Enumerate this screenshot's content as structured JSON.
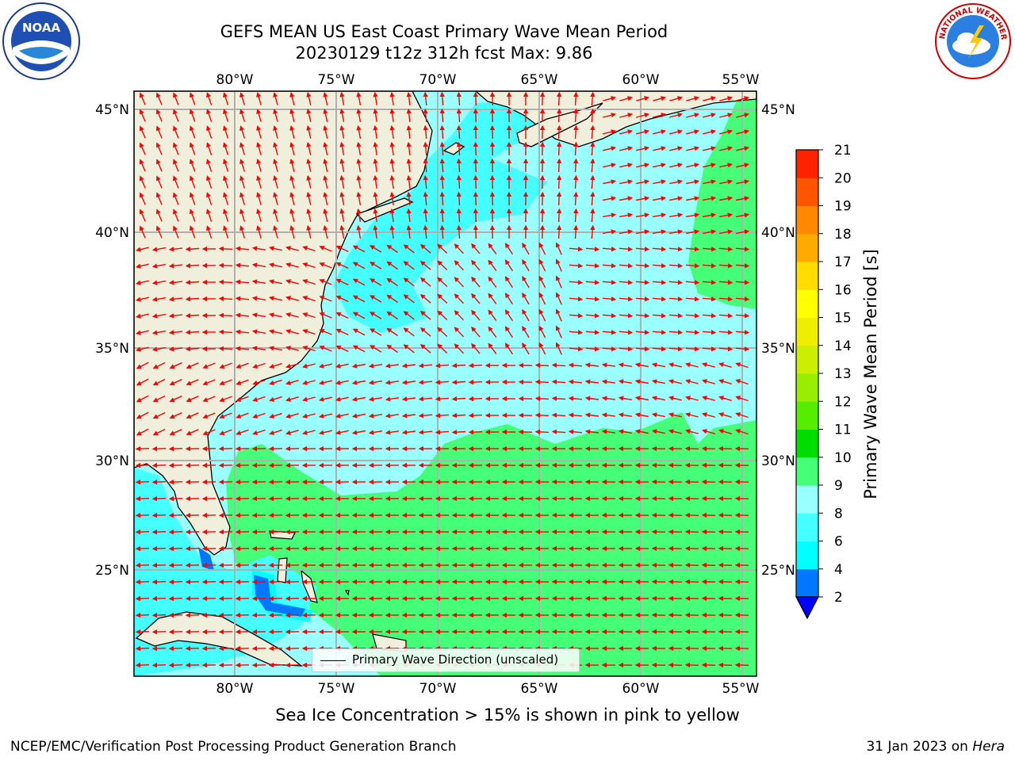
{
  "title": {
    "line1": "GEFS MEAN US East Coast Primary Wave Mean Period",
    "line2": "20230129 t12z 312h fcst   Max: 9.86"
  },
  "logos": {
    "left": {
      "icon": "noaa-logo",
      "text": "NOAA"
    },
    "right": {
      "icon": "nws-logo",
      "text": "NATIONAL WEATHER SERVICE"
    }
  },
  "map": {
    "lon_labels": [
      "80°W",
      "75°W",
      "70°W",
      "65°W",
      "60°W",
      "55°W"
    ],
    "lat_labels": [
      "45°N",
      "40°N",
      "35°N",
      "30°N",
      "25°N"
    ],
    "lon_range": [
      -85,
      -54.3
    ],
    "lat_range": [
      20,
      46
    ],
    "legend": "Primary Wave Direction (unscaled)",
    "arrow_color": "#ff0000",
    "land_color": "#efefdc"
  },
  "colorbar": {
    "title": "Primary Wave Mean Period [s]",
    "ticks": [
      "2",
      "4",
      "6",
      "8",
      "9",
      "10",
      "11",
      "12",
      "13",
      "14",
      "15",
      "16",
      "17",
      "18",
      "19",
      "20",
      "21"
    ],
    "colors": [
      "#0077ff",
      "#00ffff",
      "#44ffff",
      "#99ffff",
      "#44ff77",
      "#00dd00",
      "#55ee00",
      "#99ee00",
      "#ccee00",
      "#eeee00",
      "#ffff00",
      "#ffdd00",
      "#ffaa00",
      "#ff8800",
      "#ff5500",
      "#ff2200"
    ],
    "under_color": "#0000ff",
    "over_color": "#ff0000"
  },
  "note": "Sea Ice Concentration > 15% is shown in pink to yellow",
  "footer": {
    "left": "NCEP/EMC/Verification Post Processing Product Generation Branch",
    "date": "31 Jan 2023 on",
    "machine": "Hera"
  }
}
